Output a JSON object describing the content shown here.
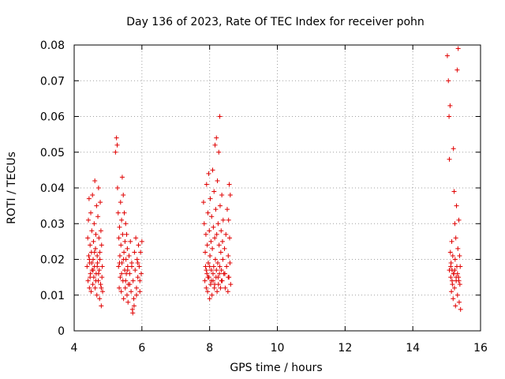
{
  "chart_data": {
    "type": "scatter",
    "title": "Day 136 of 2023, Rate Of TEC Index for receiver pohn",
    "xlabel": "GPS time / hours",
    "ylabel": "ROTI / TECUs",
    "xlim": [
      4,
      16
    ],
    "ylim": [
      0,
      0.08
    ],
    "x_ticks": [
      4,
      6,
      8,
      10,
      12,
      14,
      16
    ],
    "x_tick_labels": [
      "4",
      "6",
      "8",
      "10",
      "12",
      "14",
      "16"
    ],
    "y_ticks": [
      0,
      0.01,
      0.02,
      0.03,
      0.04,
      0.05,
      0.06,
      0.07,
      0.08
    ],
    "y_tick_labels": [
      "0",
      "0.01",
      "0.02",
      "0.03",
      "0.04",
      "0.05",
      "0.06",
      "0.07",
      "0.08"
    ],
    "grid": true,
    "marker": "+",
    "series": [
      {
        "name": "pohn",
        "color": "#e00000",
        "points": [
          [
            4.38,
            0.018
          ],
          [
            4.4,
            0.026
          ],
          [
            4.41,
            0.014
          ],
          [
            4.42,
            0.031
          ],
          [
            4.43,
            0.021
          ],
          [
            4.44,
            0.037
          ],
          [
            4.45,
            0.012
          ],
          [
            4.46,
            0.019
          ],
          [
            4.47,
            0.024
          ],
          [
            4.48,
            0.016
          ],
          [
            4.49,
            0.033
          ],
          [
            4.5,
            0.011
          ],
          [
            4.51,
            0.022
          ],
          [
            4.52,
            0.028
          ],
          [
            4.53,
            0.017
          ],
          [
            4.54,
            0.038
          ],
          [
            4.55,
            0.013
          ],
          [
            4.56,
            0.02
          ],
          [
            4.57,
            0.025
          ],
          [
            4.58,
            0.015
          ],
          [
            4.59,
            0.03
          ],
          [
            4.6,
            0.018
          ],
          [
            4.61,
            0.042
          ],
          [
            4.62,
            0.012
          ],
          [
            4.63,
            0.023
          ],
          [
            4.64,
            0.027
          ],
          [
            4.65,
            0.016
          ],
          [
            4.66,
            0.035
          ],
          [
            4.67,
            0.01
          ],
          [
            4.68,
            0.021
          ],
          [
            4.69,
            0.019
          ],
          [
            4.7,
            0.032
          ],
          [
            4.71,
            0.014
          ],
          [
            4.72,
            0.04
          ],
          [
            4.73,
            0.026
          ],
          [
            4.74,
            0.017
          ],
          [
            4.75,
            0.009
          ],
          [
            4.76,
            0.022
          ],
          [
            4.77,
            0.036
          ],
          [
            4.78,
            0.013
          ],
          [
            4.79,
            0.028
          ],
          [
            4.8,
            0.007
          ],
          [
            4.81,
            0.024
          ],
          [
            4.82,
            0.015
          ],
          [
            4.83,
            0.018
          ],
          [
            4.84,
            0.011
          ],
          [
            4.45,
            0.02
          ],
          [
            4.47,
            0.015
          ],
          [
            4.52,
            0.019
          ],
          [
            4.56,
            0.017
          ],
          [
            4.6,
            0.022
          ],
          [
            4.64,
            0.014
          ],
          [
            4.68,
            0.018
          ],
          [
            4.72,
            0.016
          ],
          [
            4.76,
            0.02
          ],
          [
            4.8,
            0.012
          ],
          [
            5.22,
            0.05
          ],
          [
            5.25,
            0.054
          ],
          [
            5.27,
            0.052
          ],
          [
            5.28,
            0.04
          ],
          [
            5.3,
            0.033
          ],
          [
            5.31,
            0.018
          ],
          [
            5.32,
            0.026
          ],
          [
            5.33,
            0.012
          ],
          [
            5.34,
            0.029
          ],
          [
            5.35,
            0.021
          ],
          [
            5.36,
            0.015
          ],
          [
            5.37,
            0.036
          ],
          [
            5.38,
            0.024
          ],
          [
            5.39,
            0.011
          ],
          [
            5.4,
            0.031
          ],
          [
            5.41,
            0.019
          ],
          [
            5.42,
            0.043
          ],
          [
            5.43,
            0.027
          ],
          [
            5.44,
            0.014
          ],
          [
            5.45,
            0.038
          ],
          [
            5.46,
            0.009
          ],
          [
            5.47,
            0.022
          ],
          [
            5.48,
            0.033
          ],
          [
            5.49,
            0.017
          ],
          [
            5.5,
            0.025
          ],
          [
            5.51,
            0.012
          ],
          [
            5.52,
            0.03
          ],
          [
            5.53,
            0.02
          ],
          [
            5.54,
            0.016
          ],
          [
            5.55,
            0.027
          ],
          [
            5.56,
            0.01
          ],
          [
            5.57,
            0.023
          ],
          [
            5.58,
            0.018
          ],
          [
            5.59,
            0.008
          ],
          [
            5.6,
            0.013
          ],
          [
            5.62,
            0.021
          ],
          [
            5.64,
            0.016
          ],
          [
            5.66,
            0.025
          ],
          [
            5.68,
            0.011
          ],
          [
            5.7,
            0.019
          ],
          [
            5.72,
            0.006
          ],
          [
            5.74,
            0.014
          ],
          [
            5.76,
            0.009
          ],
          [
            5.78,
            0.022
          ],
          [
            5.8,
            0.017
          ],
          [
            5.82,
            0.026
          ],
          [
            5.84,
            0.012
          ],
          [
            5.86,
            0.02
          ],
          [
            5.88,
            0.015
          ],
          [
            5.9,
            0.024
          ],
          [
            5.92,
            0.018
          ],
          [
            5.94,
            0.011
          ],
          [
            5.96,
            0.022
          ],
          [
            5.98,
            0.016
          ],
          [
            6.0,
            0.025
          ],
          [
            5.73,
            0.005
          ],
          [
            5.77,
            0.007
          ],
          [
            5.84,
            0.01
          ],
          [
            5.34,
            0.019
          ],
          [
            5.4,
            0.016
          ],
          [
            5.46,
            0.02
          ],
          [
            5.52,
            0.014
          ],
          [
            5.58,
            0.017
          ],
          [
            5.64,
            0.013
          ],
          [
            5.7,
            0.018
          ],
          [
            5.88,
            0.019
          ],
          [
            5.94,
            0.014
          ],
          [
            7.82,
            0.036
          ],
          [
            7.84,
            0.03
          ],
          [
            7.86,
            0.014
          ],
          [
            7.87,
            0.022
          ],
          [
            7.88,
            0.018
          ],
          [
            7.89,
            0.027
          ],
          [
            7.9,
            0.012
          ],
          [
            7.91,
            0.041
          ],
          [
            7.92,
            0.016
          ],
          [
            7.93,
            0.024
          ],
          [
            7.94,
            0.011
          ],
          [
            7.95,
            0.033
          ],
          [
            7.96,
            0.019
          ],
          [
            7.97,
            0.044
          ],
          [
            7.98,
            0.015
          ],
          [
            7.99,
            0.028
          ],
          [
            8.0,
            0.009
          ],
          [
            8.01,
            0.021
          ],
          [
            8.02,
            0.037
          ],
          [
            8.03,
            0.013
          ],
          [
            8.04,
            0.025
          ],
          [
            8.05,
            0.017
          ],
          [
            8.06,
            0.032
          ],
          [
            8.07,
            0.01
          ],
          [
            8.08,
            0.023
          ],
          [
            8.09,
            0.045
          ],
          [
            8.1,
            0.014
          ],
          [
            8.11,
            0.029
          ],
          [
            8.12,
            0.018
          ],
          [
            8.13,
            0.039
          ],
          [
            8.14,
            0.012
          ],
          [
            8.15,
            0.026
          ],
          [
            8.16,
            0.052
          ],
          [
            8.17,
            0.02
          ],
          [
            8.18,
            0.034
          ],
          [
            8.19,
            0.015
          ],
          [
            8.2,
            0.054
          ],
          [
            8.21,
            0.027
          ],
          [
            8.22,
            0.011
          ],
          [
            8.23,
            0.042
          ],
          [
            8.24,
            0.019
          ],
          [
            8.25,
            0.03
          ],
          [
            8.26,
            0.013
          ],
          [
            8.27,
            0.05
          ],
          [
            8.28,
            0.024
          ],
          [
            8.29,
            0.016
          ],
          [
            8.3,
            0.06
          ],
          [
            8.31,
            0.035
          ],
          [
            8.32,
            0.012
          ],
          [
            8.33,
            0.022
          ],
          [
            8.34,
            0.028
          ],
          [
            8.35,
            0.017
          ],
          [
            8.36,
            0.038
          ],
          [
            8.37,
            0.014
          ],
          [
            8.38,
            0.025
          ],
          [
            8.39,
            0.02
          ],
          [
            8.4,
            0.031
          ],
          [
            8.42,
            0.016
          ],
          [
            8.44,
            0.023
          ],
          [
            8.46,
            0.012
          ],
          [
            8.48,
            0.027
          ],
          [
            8.5,
            0.018
          ],
          [
            8.52,
            0.034
          ],
          [
            8.54,
            0.011
          ],
          [
            8.55,
            0.021
          ],
          [
            8.56,
            0.031
          ],
          [
            8.57,
            0.015
          ],
          [
            8.58,
            0.041
          ],
          [
            8.59,
            0.026
          ],
          [
            8.6,
            0.019
          ],
          [
            8.61,
            0.038
          ],
          [
            8.62,
            0.013
          ],
          [
            7.9,
            0.017
          ],
          [
            7.95,
            0.015
          ],
          [
            8.0,
            0.018
          ],
          [
            8.05,
            0.014
          ],
          [
            8.1,
            0.016
          ],
          [
            8.15,
            0.013
          ],
          [
            8.2,
            0.017
          ],
          [
            8.25,
            0.015
          ],
          [
            8.3,
            0.018
          ],
          [
            8.35,
            0.014
          ],
          [
            8.45,
            0.016
          ],
          [
            8.55,
            0.015
          ],
          [
            15.02,
            0.077
          ],
          [
            15.05,
            0.07
          ],
          [
            15.07,
            0.06
          ],
          [
            15.08,
            0.048
          ],
          [
            15.1,
            0.063
          ],
          [
            15.11,
            0.022
          ],
          [
            15.12,
            0.015
          ],
          [
            15.13,
            0.019
          ],
          [
            15.14,
            0.011
          ],
          [
            15.15,
            0.025
          ],
          [
            15.16,
            0.017
          ],
          [
            15.17,
            0.013
          ],
          [
            15.18,
            0.021
          ],
          [
            15.19,
            0.009
          ],
          [
            15.2,
            0.051
          ],
          [
            15.21,
            0.016
          ],
          [
            15.22,
            0.039
          ],
          [
            15.23,
            0.012
          ],
          [
            15.24,
            0.03
          ],
          [
            15.25,
            0.02
          ],
          [
            15.26,
            0.007
          ],
          [
            15.27,
            0.026
          ],
          [
            15.28,
            0.014
          ],
          [
            15.29,
            0.035
          ],
          [
            15.3,
            0.018
          ],
          [
            15.31,
            0.073
          ],
          [
            15.32,
            0.01
          ],
          [
            15.33,
            0.023
          ],
          [
            15.34,
            0.079
          ],
          [
            15.35,
            0.015
          ],
          [
            15.36,
            0.031
          ],
          [
            15.37,
            0.008
          ],
          [
            15.38,
            0.021
          ],
          [
            15.39,
            0.013
          ],
          [
            15.4,
            0.018
          ],
          [
            15.41,
            0.006
          ],
          [
            15.08,
            0.017
          ],
          [
            15.12,
            0.018
          ],
          [
            15.16,
            0.014
          ],
          [
            15.2,
            0.016
          ],
          [
            15.24,
            0.017
          ],
          [
            15.28,
            0.015
          ],
          [
            15.32,
            0.016
          ],
          [
            15.36,
            0.014
          ]
        ]
      }
    ]
  }
}
